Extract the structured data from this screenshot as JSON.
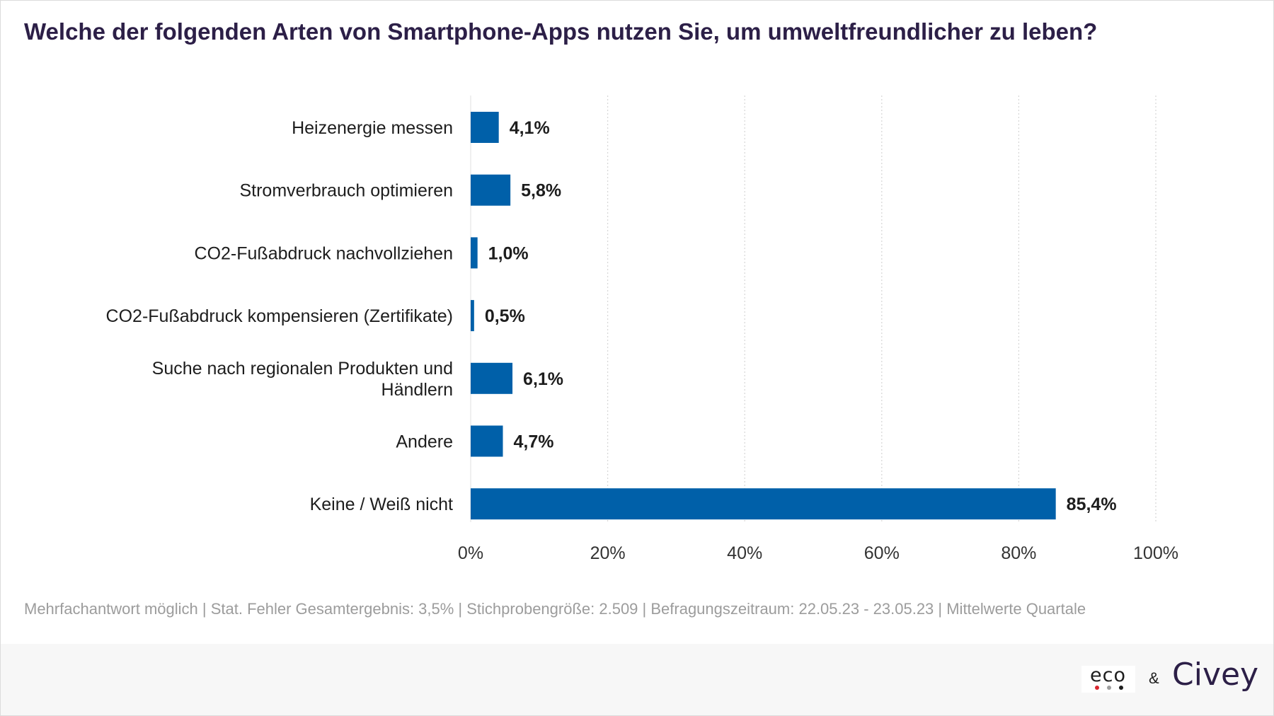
{
  "title": "Welche der folgenden Arten von Smartphone-Apps nutzen Sie, um umweltfreundlicher zu leben?",
  "footnote": "Mehrfachantwort möglich | Stat. Fehler Gesamtergebnis: 3,5% | Stichprobengröße: 2.509 | Befragungszeitraum: 22.05.23 - 23.05.23 | Mittelwerte Quartale",
  "logos": {
    "eco": "eco",
    "amp": "&",
    "civey": "Civey",
    "eco_dot_colors": [
      "#d9262e",
      "#9e9e9e",
      "#1d1d1d"
    ]
  },
  "chart_data": {
    "type": "bar",
    "orientation": "horizontal",
    "categories": [
      [
        "Heizenergie messen"
      ],
      [
        "Stromverbrauch optimieren"
      ],
      [
        "CO2-Fußabdruck nachvollziehen"
      ],
      [
        "CO2-Fußabdruck kompensieren (Zertifikate)"
      ],
      [
        "Suche nach regionalen Produkten und",
        "Händlern"
      ],
      [
        "Andere"
      ],
      [
        "Keine / Weiß nicht"
      ]
    ],
    "values": [
      4.1,
      5.8,
      1.0,
      0.5,
      6.1,
      4.7,
      85.4
    ],
    "value_labels": [
      "4,1%",
      "5,8%",
      "1,0%",
      "0,5%",
      "6,1%",
      "4,7%",
      "85,4%"
    ],
    "xlim": [
      0,
      100
    ],
    "xticks": [
      0,
      20,
      40,
      60,
      80,
      100
    ],
    "xtick_labels": [
      "0%",
      "20%",
      "40%",
      "60%",
      "80%",
      "100%"
    ],
    "grid": "vertical-dotted",
    "bar_color": "#0060a9",
    "label_color": "#1d1d1d",
    "grid_color": "#d6d6d6",
    "tick_color": "#333333"
  }
}
